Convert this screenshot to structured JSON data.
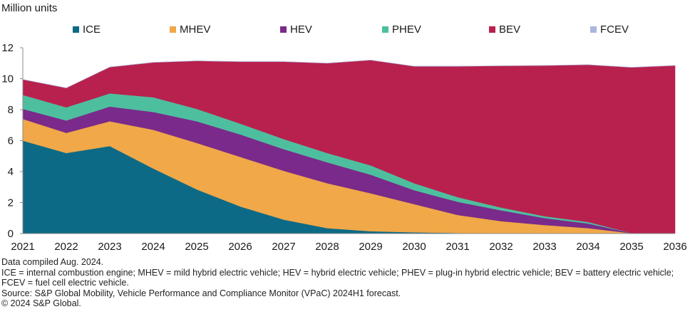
{
  "chart_data": {
    "type": "area",
    "stacked": true,
    "ylabel": "Million units",
    "xlabel": "",
    "ylim": [
      0,
      12
    ],
    "yticks": [
      0,
      2,
      4,
      6,
      8,
      10,
      12
    ],
    "categories": [
      "2021",
      "2022",
      "2023",
      "2024",
      "2025",
      "2026",
      "2027",
      "2028",
      "2029",
      "2030",
      "2031",
      "2032",
      "2033",
      "2034",
      "2035",
      "2036"
    ],
    "series": [
      {
        "name": "ICE",
        "color": "#0d6a86",
        "values": [
          6.0,
          5.2,
          5.65,
          4.2,
          2.85,
          1.75,
          0.9,
          0.35,
          0.15,
          0.08,
          0.04,
          0.02,
          0.01,
          0.0,
          0.0,
          0.0
        ]
      },
      {
        "name": "MHEV",
        "color": "#f0a848",
        "values": [
          1.4,
          1.3,
          1.6,
          2.5,
          3.0,
          3.2,
          3.15,
          2.9,
          2.45,
          1.82,
          1.16,
          0.78,
          0.54,
          0.35,
          0.02,
          0.0
        ]
      },
      {
        "name": "HEV",
        "color": "#7a2a8a",
        "values": [
          0.65,
          0.8,
          0.95,
          1.15,
          1.4,
          1.45,
          1.4,
          1.35,
          1.2,
          0.9,
          0.85,
          0.7,
          0.45,
          0.3,
          0.01,
          0.0
        ]
      },
      {
        "name": "PHEV",
        "color": "#4ebf9e",
        "values": [
          0.9,
          0.85,
          0.85,
          0.95,
          0.8,
          0.7,
          0.65,
          0.6,
          0.6,
          0.45,
          0.3,
          0.18,
          0.12,
          0.1,
          0.0,
          0.0
        ]
      },
      {
        "name": "BEV",
        "color": "#b8214e",
        "values": [
          1.0,
          1.25,
          1.7,
          2.25,
          3.1,
          4.0,
          5.0,
          5.8,
          6.8,
          7.55,
          8.45,
          9.15,
          9.73,
          10.15,
          10.7,
          10.85
        ]
      },
      {
        "name": "FCEV",
        "color": "#a9b6de",
        "values": [
          0.0,
          0.0,
          0.0,
          0.0,
          0.0,
          0.0,
          0.0,
          0.0,
          0.0,
          0.0,
          0.0,
          0.0,
          0.0,
          0.0,
          0.0,
          0.0
        ]
      }
    ]
  },
  "notes": {
    "compiled": "Data compiled Aug. 2024.",
    "definitions": "ICE = internal combustion engine; MHEV  = mild hybrid electric vehicle; HEV = hybrid electric vehicle; PHEV = plug-in hybrid electric vehicle; BEV = battery electric vehicle; FCEV = fuel cell electric vehicle.",
    "source": "Source: S&P Global Mobility, Vehicle Performance and Compliance Monitor (VPaC) 2024H1 forecast.",
    "copyright": "© 2024 S&P Global."
  }
}
